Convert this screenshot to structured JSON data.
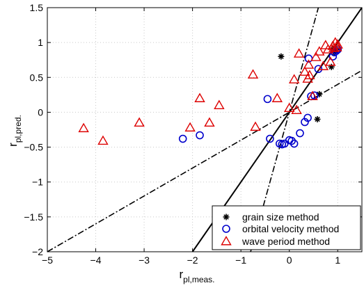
{
  "chart_data": {
    "type": "scatter",
    "xlabel_main": "r",
    "xlabel_sub": "pl,meas.",
    "ylabel_main": "r",
    "ylabel_sub": "pl,pred.",
    "xlim": [
      -5,
      1.5
    ],
    "ylim": [
      -2,
      1.5
    ],
    "xticks": [
      -5,
      -4,
      -3,
      -2,
      -1,
      0,
      1
    ],
    "yticks": [
      -2,
      -1.5,
      -1,
      -0.5,
      0,
      0.5,
      1,
      1.5
    ],
    "grid": true,
    "legend_position": "bottom-right",
    "series": [
      {
        "name": "grain size method",
        "marker": "asterisk",
        "color": "#000000",
        "points": [
          [
            -0.17,
            0.8
          ],
          [
            0.87,
            0.65
          ],
          [
            0.62,
            0.26
          ],
          [
            0.58,
            -0.1
          ],
          [
            0.9,
            0.9
          ],
          [
            0.93,
            0.85
          ],
          [
            0.95,
            0.88
          ],
          [
            0.97,
            0.9
          ]
        ]
      },
      {
        "name": "orbital velocity method",
        "marker": "circle",
        "color": "#0000cc",
        "points": [
          [
            -2.2,
            -0.38
          ],
          [
            -1.85,
            -0.33
          ],
          [
            -0.45,
            0.19
          ],
          [
            -0.4,
            -0.38
          ],
          [
            -0.2,
            -0.45
          ],
          [
            -0.15,
            -0.46
          ],
          [
            -0.1,
            -0.45
          ],
          [
            0.0,
            -0.4
          ],
          [
            0.05,
            -0.41
          ],
          [
            0.1,
            -0.45
          ],
          [
            0.22,
            -0.3
          ],
          [
            0.32,
            -0.14
          ],
          [
            0.38,
            -0.08
          ],
          [
            0.45,
            0.23
          ],
          [
            0.52,
            0.24
          ],
          [
            0.6,
            0.62
          ],
          [
            0.4,
            0.77
          ],
          [
            0.9,
            0.8
          ],
          [
            0.93,
            0.86
          ],
          [
            0.97,
            0.88
          ],
          [
            1.0,
            0.9
          ]
        ]
      },
      {
        "name": "wave period method",
        "marker": "triangle",
        "color": "#dd0000",
        "points": [
          [
            -4.25,
            -0.23
          ],
          [
            -3.85,
            -0.41
          ],
          [
            -3.1,
            -0.15
          ],
          [
            -2.05,
            -0.22
          ],
          [
            -1.85,
            0.2
          ],
          [
            -1.65,
            -0.15
          ],
          [
            -1.45,
            0.1
          ],
          [
            -0.75,
            0.54
          ],
          [
            -0.7,
            -0.21
          ],
          [
            -0.25,
            0.2
          ],
          [
            0.0,
            0.06
          ],
          [
            0.1,
            0.47
          ],
          [
            0.15,
            0.03
          ],
          [
            0.2,
            0.84
          ],
          [
            0.32,
            0.58
          ],
          [
            0.38,
            0.48
          ],
          [
            0.42,
            0.53
          ],
          [
            0.4,
            0.68
          ],
          [
            0.48,
            0.23
          ],
          [
            0.55,
            0.79
          ],
          [
            0.62,
            0.87
          ],
          [
            0.7,
            0.66
          ],
          [
            0.75,
            0.96
          ],
          [
            0.8,
            0.9
          ],
          [
            0.85,
            0.72
          ],
          [
            0.9,
            0.95
          ],
          [
            0.95,
            1.0
          ],
          [
            1.0,
            0.97
          ],
          [
            0.98,
            0.93
          ],
          [
            0.92,
            0.92
          ]
        ]
      }
    ],
    "reference_lines": [
      {
        "name": "1:1 line",
        "style": "solid",
        "slope": 1.0,
        "intercept": 0.0
      },
      {
        "name": "upper bound",
        "style": "dashdot",
        "slope": 2.5,
        "intercept": 0.0
      },
      {
        "name": "lower bound",
        "style": "dashdot",
        "slope": 0.4,
        "intercept": 0.0
      }
    ]
  }
}
